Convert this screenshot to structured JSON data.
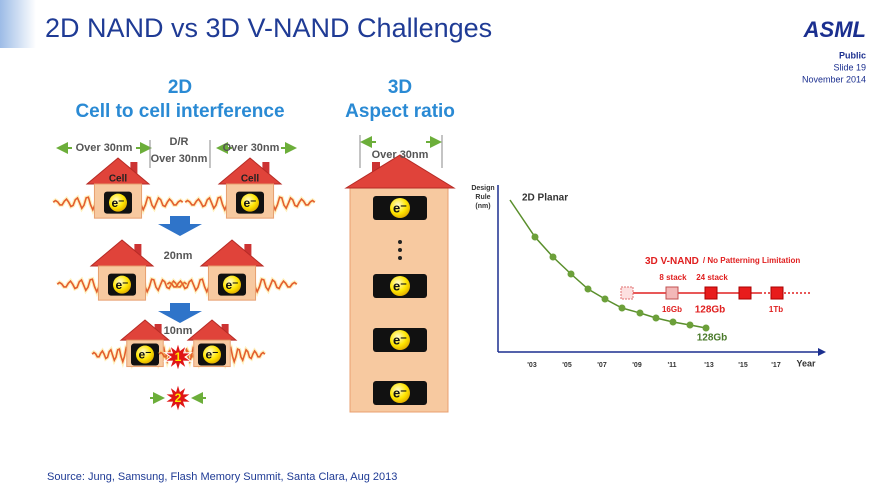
{
  "header": {
    "title": "2D NAND vs 3D V-NAND Challenges",
    "logo": "ASML",
    "classification": "Public",
    "slide": "Slide 19",
    "date": "November 2014"
  },
  "left_panel": {
    "heading": "2D",
    "subheading": "Cell to cell interference",
    "pitch_label_left": "Over 30nm",
    "dr_label": "D/R",
    "dr_value": "Over 30nm",
    "pitch_label_right": "Over 30nm",
    "cell_labels": [
      "Cell",
      "Cell"
    ],
    "step_labels": [
      "20nm",
      "10nm"
    ],
    "electrons": [
      "e⁻",
      "e⁻",
      "e⁻",
      "e⁻",
      "e⁻",
      "e⁻"
    ],
    "interference_markers": [
      "1",
      "2"
    ]
  },
  "middle_panel": {
    "heading": "3D",
    "subheading": "Aspect ratio",
    "width_label": "Over 30nm",
    "electrons": [
      "e⁻",
      "e⁻",
      "e⁻",
      "e⁻"
    ]
  },
  "roadmap": {
    "y_axis_label": [
      "Design",
      "Rule",
      "(nm)"
    ],
    "planar_label": "2D Planar",
    "vnand_label": "3D V-NAND",
    "vnand_note": "/ No Patterning Limitation",
    "stack_labels": [
      "8 stack",
      "24 stack"
    ],
    "capacity_labels": [
      "16Gb",
      "128Gb",
      "1Tb"
    ],
    "planar_capacity": "128Gb",
    "x_ticks": [
      "'03",
      "'05",
      "'07",
      "'09",
      "'11",
      "'13",
      "'15",
      "'17"
    ],
    "x_axis_label": "Year"
  },
  "footer": {
    "source": "Source: Jung, Samsung, Flash Memory Summit, Santa Clara, Aug 2013"
  }
}
